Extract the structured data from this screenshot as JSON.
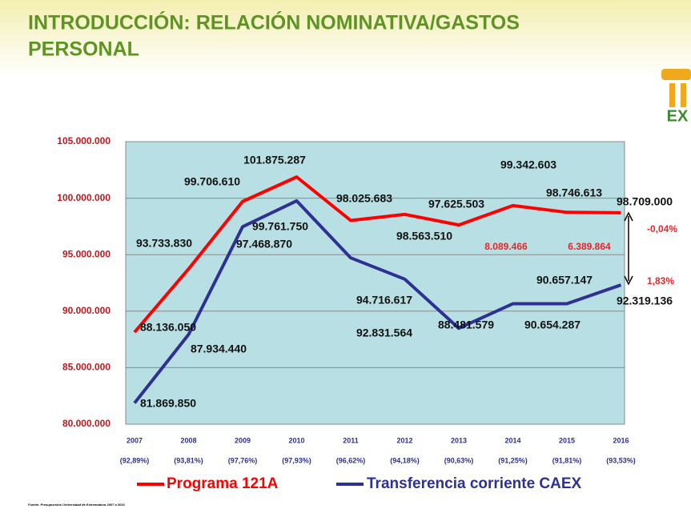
{
  "chart_data": {
    "type": "line",
    "title_lines": [
      "INTRODUCCIÓN: RELACIÓN NOMINATIVA/GASTOS",
      "PERSONAL"
    ],
    "logo_text": "EX",
    "categories": [
      "2007",
      "2008",
      "2009",
      "2010",
      "2011",
      "2012",
      "2013",
      "2014",
      "2015",
      "2016"
    ],
    "category_sublabels": [
      "(92,89%)",
      "(93,81%)",
      "(97,76%)",
      "(97,93%)",
      "(96,62%)",
      "(94,18%)",
      "(90,63%)",
      "(91,25%)",
      "(91,81%)",
      "(93,53%)"
    ],
    "series": [
      {
        "name": "Programa 121A",
        "color": "#ff0000",
        "values": [
          88136050,
          93733830,
          99706610,
          101875287,
          98025683,
          98563510,
          97625503,
          99342603,
          98746613,
          98709000
        ],
        "value_labels": [
          "88.136.050",
          "93.733.830",
          "99.706.610",
          "101.875.287",
          "98.025.683",
          "98.563.510",
          "97.625.503",
          "99.342.603",
          "98.746.613",
          "98.709.000"
        ]
      },
      {
        "name": "Transferencia corriente CAEX",
        "color": "#2e3192",
        "values": [
          81869850,
          87934440,
          97468870,
          99761750,
          94716617,
          92831564,
          88481579,
          90654287,
          90657147,
          92319136
        ],
        "value_labels": [
          "81.869.850",
          "87.934.440",
          "97.468.870",
          "99.761.750",
          "94.716.617",
          "92.831.564",
          "88.481.579",
          "90.654.287",
          "90.657.147",
          "92.319.136"
        ]
      }
    ],
    "ylim": [
      80000000,
      105000000
    ],
    "yticks": [
      {
        "value": 80000000,
        "label": "80.000.000"
      },
      {
        "value": 85000000,
        "label": "85.000.000"
      },
      {
        "value": 90000000,
        "label": "90.000.000"
      },
      {
        "value": 95000000,
        "label": "95.000.000"
      },
      {
        "value": 100000000,
        "label": "100.000.000"
      },
      {
        "value": 105000000,
        "label": "105.000.000"
      }
    ],
    "grid": true,
    "annotations": [
      "-0,04%",
      "8.089.466",
      "6.389.864",
      "1,83%"
    ],
    "source": "Fuente: Presupuestos Universidad de Extremadura 2007 a 2016"
  }
}
